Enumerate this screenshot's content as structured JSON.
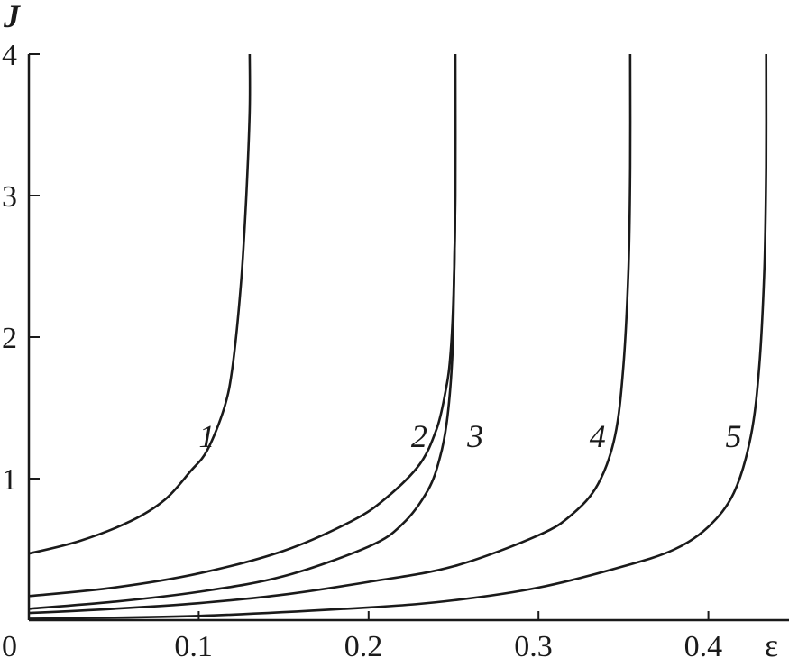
{
  "chart_data": {
    "type": "line",
    "xlabel": "ε",
    "ylabel": "J",
    "xlim": [
      0,
      0.45
    ],
    "ylim": [
      0,
      4
    ],
    "x_ticks": [
      {
        "value": 0,
        "label": "0"
      },
      {
        "value": 0.1,
        "label": "0.1"
      },
      {
        "value": 0.2,
        "label": "0.2"
      },
      {
        "value": 0.3,
        "label": "0.3"
      },
      {
        "value": 0.4,
        "label": "0.4"
      }
    ],
    "y_ticks": [
      {
        "value": 1,
        "label": "1"
      },
      {
        "value": 2,
        "label": "2"
      },
      {
        "value": 3,
        "label": "3"
      },
      {
        "value": 4,
        "label": "4"
      }
    ],
    "grid": false,
    "series": [
      {
        "label": "1",
        "label_at": [
          0.1,
          1.3
        ],
        "x": [
          0,
          0.03,
          0.06,
          0.08,
          0.095,
          0.105,
          0.115,
          0.12,
          0.125,
          0.128,
          0.13,
          0.13
        ],
        "y": [
          0.47,
          0.56,
          0.7,
          0.85,
          1.05,
          1.2,
          1.5,
          1.8,
          2.4,
          3.0,
          3.6,
          4.0
        ]
      },
      {
        "label": "2",
        "label_at": [
          0.225,
          1.3
        ],
        "x": [
          0,
          0.05,
          0.1,
          0.15,
          0.19,
          0.21,
          0.23,
          0.24,
          0.245,
          0.248,
          0.25,
          0.251,
          0.251
        ],
        "y": [
          0.17,
          0.23,
          0.33,
          0.49,
          0.7,
          0.86,
          1.1,
          1.35,
          1.6,
          1.85,
          2.3,
          3.0,
          4.0
        ]
      },
      {
        "label": "3",
        "label_at": [
          0.258,
          1.3
        ],
        "x": [
          0,
          0.05,
          0.1,
          0.15,
          0.2,
          0.22,
          0.235,
          0.242,
          0.246,
          0.249,
          0.25,
          0.251,
          0.251
        ],
        "y": [
          0.08,
          0.13,
          0.2,
          0.31,
          0.52,
          0.68,
          0.92,
          1.15,
          1.4,
          1.8,
          2.2,
          3.0,
          4.0
        ]
      },
      {
        "label": "4",
        "label_at": [
          0.33,
          1.3
        ],
        "x": [
          0,
          0.05,
          0.1,
          0.15,
          0.2,
          0.25,
          0.3,
          0.32,
          0.335,
          0.345,
          0.35,
          0.353,
          0.354,
          0.354
        ],
        "y": [
          0.05,
          0.08,
          0.12,
          0.18,
          0.27,
          0.38,
          0.6,
          0.75,
          0.96,
          1.3,
          1.8,
          2.5,
          3.2,
          4.0
        ]
      },
      {
        "label": "5",
        "label_at": [
          0.41,
          1.3
        ],
        "x": [
          0,
          0.1,
          0.2,
          0.25,
          0.3,
          0.35,
          0.38,
          0.4,
          0.415,
          0.425,
          0.43,
          0.433,
          0.434,
          0.434
        ],
        "y": [
          0.01,
          0.03,
          0.09,
          0.14,
          0.23,
          0.38,
          0.5,
          0.66,
          0.9,
          1.3,
          1.8,
          2.5,
          3.2,
          4.0
        ]
      }
    ]
  }
}
